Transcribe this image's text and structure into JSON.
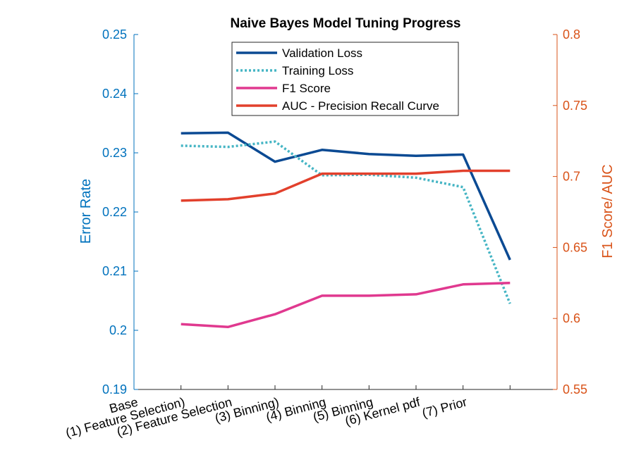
{
  "chart_data": {
    "type": "line",
    "title": "Naive Bayes Model Tuning Progress",
    "xlabel": "",
    "categories": [
      "Base",
      "(1) Feature Selection)",
      "(2) Feature Selection",
      "(3) Binning)",
      "(4) Binning",
      "(5) Binning",
      "(6) Kernel pdf",
      "(7) Prior"
    ],
    "x": [
      1,
      2,
      3,
      4,
      5,
      6,
      7,
      8
    ],
    "xlim": [
      0,
      9
    ],
    "left_axis": {
      "label": "Error Rate",
      "ylim": [
        0.19,
        0.25
      ],
      "ticks": [
        "0.19",
        "0.2",
        "0.21",
        "0.22",
        "0.23",
        "0.24",
        "0.25"
      ],
      "color": "#0072BD"
    },
    "right_axis": {
      "label": "F1 Score/ AUC",
      "ylim": [
        0.55,
        0.8
      ],
      "ticks": [
        "0.55",
        "0.6",
        "0.65",
        "0.7",
        "0.75",
        "0.8"
      ],
      "color": "#D95319"
    },
    "series": [
      {
        "name": "Validation Loss",
        "axis": "left",
        "color": "#0B4A93",
        "style": "solid",
        "values": [
          0.2333,
          0.2334,
          0.2285,
          0.2305,
          0.2298,
          0.2295,
          0.2297,
          0.2119
        ]
      },
      {
        "name": "Training Loss",
        "axis": "left",
        "color": "#45B5C4",
        "style": "dotted",
        "values": [
          0.2312,
          0.231,
          0.2319,
          0.2262,
          0.2263,
          0.2258,
          0.2242,
          0.2045
        ]
      },
      {
        "name": "F1 Score",
        "axis": "right",
        "color": "#E0398F",
        "style": "solid",
        "values": [
          0.596,
          0.594,
          0.603,
          0.616,
          0.616,
          0.617,
          0.624,
          0.625
        ]
      },
      {
        "name": "AUC - Precision Recall Curve",
        "axis": "right",
        "color": "#E2402C",
        "style": "solid",
        "values": [
          0.683,
          0.684,
          0.688,
          0.702,
          0.702,
          0.702,
          0.704,
          0.704
        ]
      }
    ],
    "legend_position": "top-center",
    "grid": false
  }
}
